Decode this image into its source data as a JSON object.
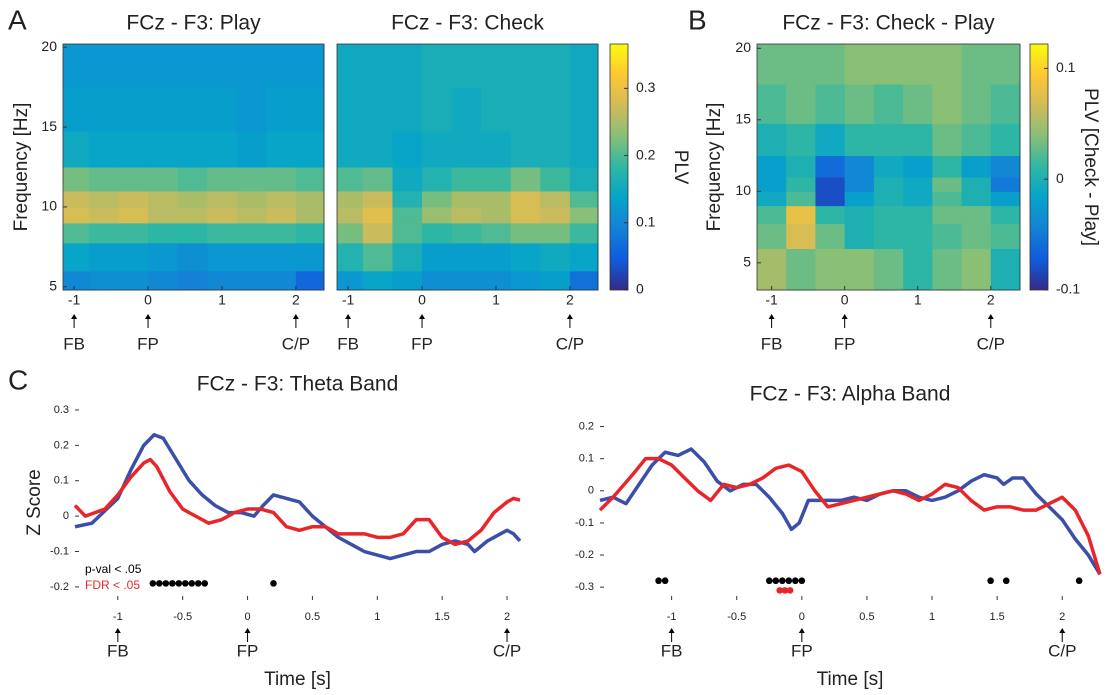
{
  "chart_data": [
    {
      "type": "heatmap",
      "panel": "A",
      "title": "FCz - F3: Play",
      "ylabel": "Frequency [Hz]",
      "x": [
        -1.0,
        -0.6,
        -0.2,
        0.2,
        0.6,
        1.0,
        1.4,
        1.8,
        2.2
      ],
      "y": [
        5,
        7,
        8.5,
        9.5,
        10.5,
        11.5,
        13.5,
        16,
        19
      ],
      "z": [
        [
          0.1,
          0.11,
          0.11,
          0.1,
          0.09,
          0.1,
          0.1,
          0.1,
          0.06
        ],
        [
          0.14,
          0.13,
          0.13,
          0.12,
          0.11,
          0.12,
          0.12,
          0.12,
          0.12
        ],
        [
          0.2,
          0.19,
          0.19,
          0.18,
          0.18,
          0.19,
          0.19,
          0.19,
          0.18
        ],
        [
          0.28,
          0.27,
          0.28,
          0.26,
          0.26,
          0.27,
          0.26,
          0.27,
          0.25
        ],
        [
          0.27,
          0.26,
          0.27,
          0.26,
          0.25,
          0.26,
          0.25,
          0.26,
          0.25
        ],
        [
          0.22,
          0.21,
          0.21,
          0.21,
          0.2,
          0.21,
          0.21,
          0.21,
          0.2
        ],
        [
          0.15,
          0.14,
          0.14,
          0.14,
          0.14,
          0.14,
          0.13,
          0.14,
          0.14
        ],
        [
          0.13,
          0.13,
          0.13,
          0.13,
          0.13,
          0.13,
          0.12,
          0.13,
          0.13
        ],
        [
          0.12,
          0.12,
          0.12,
          0.12,
          0.12,
          0.12,
          0.12,
          0.12,
          0.12
        ]
      ],
      "clim": [
        0,
        0.366
      ],
      "colormap": [
        "#352a87",
        "#0f5cdd",
        "#1481d6",
        "#06a4ca",
        "#2eb7a4",
        "#87bf77",
        "#d1bb59",
        "#fec832",
        "#f9fb0e"
      ],
      "xlim": [
        -1.15,
        2.38
      ],
      "ylim": [
        4.8,
        20.2
      ],
      "xticks": [
        -1,
        0,
        1,
        2
      ],
      "yticks": [
        5,
        10,
        15,
        20
      ],
      "events": [
        {
          "label": "FB",
          "x": -1
        },
        {
          "label": "FP",
          "x": 0
        },
        {
          "label": "C/P",
          "x": 2
        }
      ]
    },
    {
      "type": "heatmap",
      "title": "FCz - F3: Check",
      "x": [
        -1.0,
        -0.6,
        -0.2,
        0.2,
        0.6,
        1.0,
        1.4,
        1.8,
        2.2
      ],
      "y": [
        5,
        7,
        8.5,
        9.5,
        10.5,
        11.5,
        13.5,
        16,
        19
      ],
      "z": [
        [
          0.12,
          0.14,
          0.13,
          0.11,
          0.11,
          0.11,
          0.12,
          0.13,
          0.07
        ],
        [
          0.17,
          0.2,
          0.16,
          0.13,
          0.13,
          0.13,
          0.14,
          0.15,
          0.14
        ],
        [
          0.22,
          0.27,
          0.2,
          0.18,
          0.19,
          0.2,
          0.22,
          0.22,
          0.19
        ],
        [
          0.26,
          0.29,
          0.2,
          0.24,
          0.26,
          0.25,
          0.28,
          0.27,
          0.23
        ],
        [
          0.25,
          0.27,
          0.17,
          0.22,
          0.25,
          0.25,
          0.28,
          0.26,
          0.2
        ],
        [
          0.2,
          0.21,
          0.15,
          0.17,
          0.19,
          0.19,
          0.22,
          0.19,
          0.16
        ],
        [
          0.15,
          0.15,
          0.14,
          0.15,
          0.15,
          0.15,
          0.16,
          0.16,
          0.15
        ],
        [
          0.15,
          0.15,
          0.15,
          0.16,
          0.15,
          0.16,
          0.16,
          0.16,
          0.15
        ],
        [
          0.15,
          0.15,
          0.15,
          0.16,
          0.16,
          0.16,
          0.16,
          0.16,
          0.15
        ]
      ],
      "clim": [
        0,
        0.366
      ],
      "colormap": [
        "#352a87",
        "#0f5cdd",
        "#1481d6",
        "#06a4ca",
        "#2eb7a4",
        "#87bf77",
        "#d1bb59",
        "#fec832",
        "#f9fb0e"
      ],
      "colorbar": {
        "label": "PLV",
        "ticks": [
          0,
          0.1,
          0.2,
          0.3
        ]
      },
      "xlim": [
        -1.15,
        2.38
      ],
      "ylim": [
        4.8,
        20.2
      ],
      "xticks": [
        -1,
        0,
        1,
        2
      ],
      "events": [
        {
          "label": "FB",
          "x": -1
        },
        {
          "label": "FP",
          "x": 0
        },
        {
          "label": "C/P",
          "x": 2
        }
      ]
    },
    {
      "type": "heatmap",
      "panel": "B",
      "title": "FCz - F3: Check - Play",
      "ylabel": "Frequency [Hz]",
      "x": [
        -1.0,
        -0.6,
        -0.2,
        0.2,
        0.6,
        1.0,
        1.4,
        1.8,
        2.2
      ],
      "y": [
        5,
        7,
        8.5,
        9.5,
        10.5,
        11.5,
        13.5,
        16,
        19
      ],
      "z": [
        [
          0.05,
          0.03,
          0.04,
          0.04,
          0.03,
          0.01,
          0.03,
          0.04,
          0.0
        ],
        [
          0.03,
          0.07,
          0.03,
          0.0,
          0.01,
          0.01,
          0.02,
          0.03,
          0.02
        ],
        [
          0.02,
          0.08,
          0.01,
          0.0,
          0.01,
          0.01,
          0.03,
          0.03,
          0.01
        ],
        [
          -0.01,
          0.02,
          -0.08,
          -0.02,
          0.0,
          -0.01,
          0.02,
          0.0,
          -0.02
        ],
        [
          -0.02,
          0.01,
          -0.08,
          -0.04,
          0.0,
          -0.01,
          0.03,
          0.0,
          -0.05
        ],
        [
          -0.02,
          0.0,
          -0.06,
          -0.04,
          -0.01,
          -0.02,
          0.01,
          -0.02,
          -0.04
        ],
        [
          0.0,
          0.01,
          -0.01,
          0.01,
          0.01,
          0.01,
          0.03,
          0.02,
          0.01
        ],
        [
          0.02,
          0.03,
          0.02,
          0.03,
          0.02,
          0.03,
          0.04,
          0.03,
          0.02
        ],
        [
          0.03,
          0.03,
          0.03,
          0.04,
          0.04,
          0.04,
          0.04,
          0.03,
          0.03
        ]
      ],
      "clim": [
        -0.1,
        0.122
      ],
      "colormap": [
        "#352a87",
        "#0f5cdd",
        "#1481d6",
        "#06a4ca",
        "#2eb7a4",
        "#87bf77",
        "#d1bb59",
        "#fec832",
        "#f9fb0e"
      ],
      "colorbar": {
        "label": "PLV [Check - Play]",
        "ticks": [
          -0.1,
          0,
          0.1
        ]
      },
      "xlim": [
        -1.2,
        2.4
      ],
      "ylim": [
        3.1,
        20.3
      ],
      "xticks": [
        -1,
        0,
        1,
        2
      ],
      "yticks": [
        5,
        10,
        15,
        20
      ],
      "events": [
        {
          "label": "FB",
          "x": -1
        },
        {
          "label": "FP",
          "x": 0
        },
        {
          "label": "C/P",
          "x": 2
        }
      ]
    },
    {
      "type": "line",
      "panel": "C",
      "title": "FCz - F3: Theta Band",
      "ylabel": "Z Score",
      "xlabel": "Time [s]",
      "xlim": [
        -1.33,
        2.1
      ],
      "ylim": [
        -0.237,
        0.314
      ],
      "xticks": [
        -1,
        -0.5,
        0,
        0.5,
        1,
        1.5,
        2
      ],
      "yticks": [
        -0.2,
        -0.1,
        0,
        0.1,
        0.2,
        0.3
      ],
      "series": [
        {
          "color": "#3b4ea8",
          "x": [
            -1.33,
            -1.2,
            -1.0,
            -0.9,
            -0.8,
            -0.72,
            -0.65,
            -0.55,
            -0.45,
            -0.35,
            -0.25,
            -0.15,
            -0.05,
            0.05,
            0.12,
            0.2,
            0.3,
            0.4,
            0.5,
            0.6,
            0.7,
            0.8,
            0.9,
            1.0,
            1.1,
            1.2,
            1.3,
            1.4,
            1.5,
            1.6,
            1.7,
            1.75,
            1.85,
            1.95,
            2.0,
            2.05,
            2.1
          ],
          "values": [
            -0.03,
            -0.02,
            0.05,
            0.13,
            0.2,
            0.23,
            0.22,
            0.16,
            0.1,
            0.06,
            0.03,
            0.01,
            0.01,
            0.0,
            0.03,
            0.06,
            0.05,
            0.04,
            0.0,
            -0.03,
            -0.06,
            -0.08,
            -0.1,
            -0.11,
            -0.12,
            -0.11,
            -0.1,
            -0.1,
            -0.08,
            -0.07,
            -0.08,
            -0.1,
            -0.07,
            -0.05,
            -0.04,
            -0.05,
            -0.07
          ]
        },
        {
          "color": "#e8262a",
          "x": [
            -1.33,
            -1.25,
            -1.1,
            -1.0,
            -0.9,
            -0.8,
            -0.75,
            -0.7,
            -0.6,
            -0.5,
            -0.4,
            -0.3,
            -0.2,
            -0.1,
            0.0,
            0.1,
            0.2,
            0.3,
            0.4,
            0.5,
            0.6,
            0.7,
            0.8,
            0.9,
            1.0,
            1.1,
            1.2,
            1.3,
            1.4,
            1.5,
            1.6,
            1.7,
            1.8,
            1.9,
            2.0,
            2.05,
            2.1
          ],
          "values": [
            0.03,
            0.0,
            0.02,
            0.06,
            0.11,
            0.15,
            0.16,
            0.14,
            0.07,
            0.02,
            0.0,
            -0.02,
            -0.01,
            0.01,
            0.02,
            0.02,
            0.01,
            -0.03,
            -0.04,
            -0.03,
            -0.03,
            -0.05,
            -0.05,
            -0.05,
            -0.06,
            -0.06,
            -0.05,
            -0.01,
            -0.01,
            -0.06,
            -0.08,
            -0.07,
            -0.04,
            0.01,
            0.04,
            0.05,
            0.045
          ]
        }
      ],
      "markers": [
        {
          "name": "p-val < .05",
          "color": "#000000",
          "y": -0.19,
          "x": [
            -0.73,
            -0.68,
            -0.63,
            -0.58,
            -0.53,
            -0.48,
            -0.43,
            -0.38,
            -0.33,
            0.2
          ]
        },
        {
          "name": "FDR < .05",
          "color": "#e8262a",
          "y": -0.2,
          "x": []
        }
      ],
      "events": [
        {
          "label": "FB",
          "x": -1
        },
        {
          "label": "FP",
          "x": 0
        },
        {
          "label": "C/P",
          "x": 2
        }
      ]
    },
    {
      "type": "line",
      "title": "FCz - F3: Alpha Band",
      "xlabel": "Time [s]",
      "xlim": [
        -1.55,
        2.29
      ],
      "ylim": [
        -0.34,
        0.236
      ],
      "xticks": [
        -1,
        -0.5,
        0,
        0.5,
        1,
        1.5,
        2
      ],
      "yticks": [
        -0.3,
        -0.2,
        -0.1,
        0,
        0.1,
        0.2
      ],
      "series": [
        {
          "color": "#3b4ea8",
          "x": [
            -1.55,
            -1.45,
            -1.35,
            -1.25,
            -1.15,
            -1.05,
            -0.95,
            -0.85,
            -0.75,
            -0.65,
            -0.55,
            -0.45,
            -0.35,
            -0.25,
            -0.15,
            -0.08,
            -0.02,
            0.05,
            0.15,
            0.3,
            0.4,
            0.5,
            0.6,
            0.7,
            0.8,
            0.9,
            1.0,
            1.1,
            1.2,
            1.3,
            1.4,
            1.5,
            1.55,
            1.62,
            1.7,
            1.8,
            1.9,
            2.0,
            2.1,
            2.2,
            2.29
          ],
          "values": [
            -0.03,
            -0.02,
            -0.04,
            0.02,
            0.08,
            0.12,
            0.11,
            0.13,
            0.09,
            0.03,
            0.0,
            0.02,
            0.02,
            -0.02,
            -0.07,
            -0.12,
            -0.1,
            -0.03,
            -0.03,
            -0.03,
            -0.02,
            -0.03,
            -0.01,
            0.0,
            0.0,
            -0.02,
            -0.03,
            -0.02,
            0.0,
            0.03,
            0.05,
            0.04,
            0.02,
            0.04,
            0.04,
            -0.01,
            -0.05,
            -0.09,
            -0.15,
            -0.2,
            -0.26
          ]
        },
        {
          "color": "#e8262a",
          "x": [
            -1.55,
            -1.45,
            -1.3,
            -1.2,
            -1.1,
            -1.0,
            -0.9,
            -0.8,
            -0.7,
            -0.6,
            -0.5,
            -0.4,
            -0.3,
            -0.2,
            -0.1,
            0.0,
            0.1,
            0.2,
            0.3,
            0.4,
            0.5,
            0.6,
            0.7,
            0.8,
            0.9,
            1.0,
            1.1,
            1.2,
            1.3,
            1.4,
            1.5,
            1.6,
            1.7,
            1.8,
            1.9,
            2.0,
            2.1,
            2.2,
            2.29
          ],
          "values": [
            -0.06,
            -0.02,
            0.05,
            0.1,
            0.1,
            0.08,
            0.04,
            0.0,
            -0.03,
            0.02,
            0.01,
            0.02,
            0.04,
            0.07,
            0.08,
            0.06,
            0.0,
            -0.05,
            -0.04,
            -0.03,
            -0.02,
            -0.01,
            0.0,
            -0.01,
            -0.03,
            -0.01,
            0.02,
            0.01,
            -0.03,
            -0.06,
            -0.05,
            -0.05,
            -0.06,
            -0.06,
            -0.04,
            -0.02,
            -0.06,
            -0.14,
            -0.26
          ]
        }
      ],
      "markers": [
        {
          "color": "#000000",
          "y": -0.28,
          "x": [
            -1.1,
            -1.05,
            -0.25,
            -0.2,
            -0.15,
            -0.1,
            -0.05,
            0.0,
            1.45,
            1.57,
            2.13
          ]
        },
        {
          "color": "#e8262a",
          "y": -0.31,
          "x": [
            -0.17,
            -0.13,
            -0.09
          ]
        }
      ],
      "events": [
        {
          "label": "FB",
          "x": -1
        },
        {
          "label": "FP",
          "x": 0
        },
        {
          "label": "C/P",
          "x": 2
        }
      ]
    }
  ]
}
